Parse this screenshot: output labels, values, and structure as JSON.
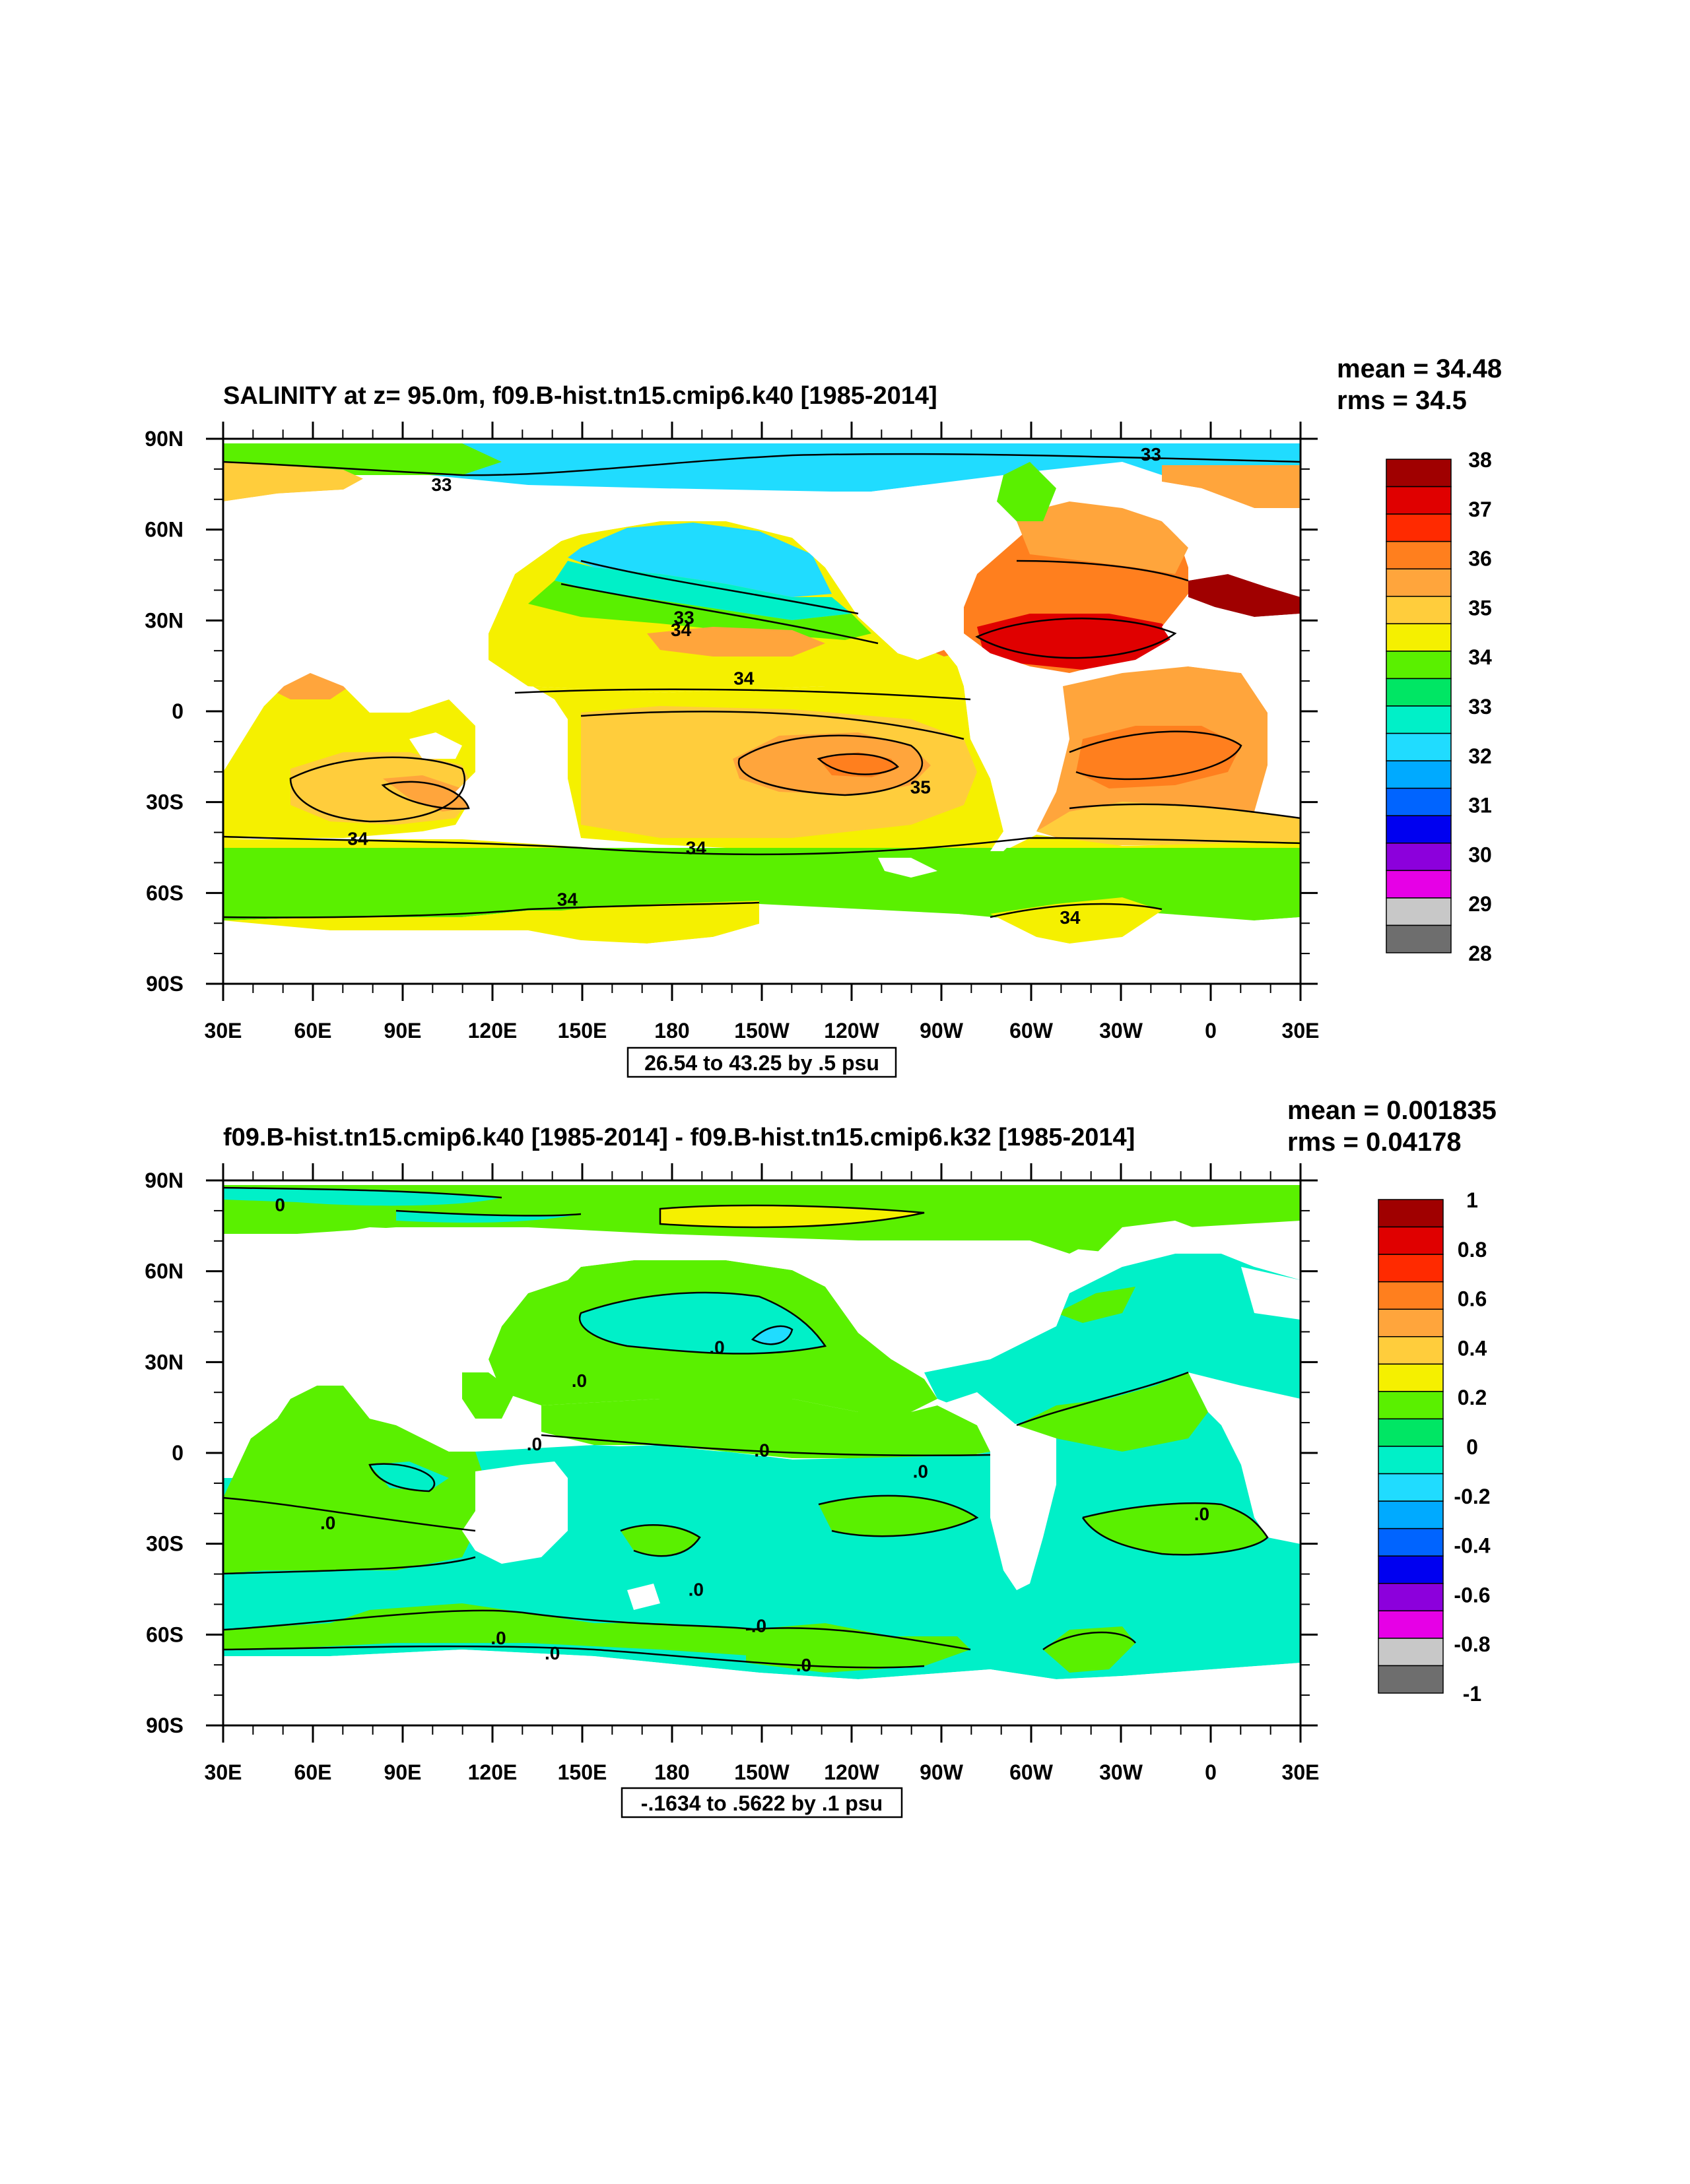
{
  "chart_data": [
    {
      "type": "contour-map",
      "title": "SALINITY at z=  95.0m, f09.B-hist.tn15.cmip6.k40 [1985-2014]",
      "stats": {
        "mean": "mean = 34.48",
        "rms": "rms = 34.5"
      },
      "x_ticks": [
        "30E",
        "60E",
        "90E",
        "120E",
        "150E",
        "180",
        "150W",
        "120W",
        "90W",
        "60W",
        "30W",
        "0",
        "30E"
      ],
      "y_ticks": [
        "90N",
        "60N",
        "30N",
        "0",
        "30S",
        "60S",
        "90S"
      ],
      "xlim": [
        30,
        390
      ],
      "ylim": [
        -90,
        90
      ],
      "contour_info": "26.54 to 43.25 by .5 psu",
      "colorbar": {
        "labels": [
          "38",
          "37",
          "36",
          "35",
          "34",
          "33",
          "32",
          "31",
          "30",
          "29",
          "28"
        ],
        "colors": [
          "#a00000",
          "#e00000",
          "#ff2a00",
          "#ff7f1e",
          "#ffa53c",
          "#ffcd3c",
          "#f5f000",
          "#5af000",
          "#00e664",
          "#00f0c8",
          "#20dcff",
          "#00aaff",
          "#0064ff",
          "#0000f0",
          "#8c00dc",
          "#e600e6",
          "#c8c8c8",
          "#6e6e6e"
        ]
      },
      "contour_labels": [
        {
          "text": "33",
          "lon": 103,
          "lat": 75
        },
        {
          "text": "33",
          "lon": 340,
          "lat": 85
        },
        {
          "text": "33",
          "lon": 184,
          "lat": 31
        },
        {
          "text": "34",
          "lon": 183,
          "lat": 27
        },
        {
          "text": "34",
          "lon": 204,
          "lat": 11
        },
        {
          "text": "35",
          "lon": 263,
          "lat": -25
        },
        {
          "text": "34",
          "lon": 75,
          "lat": -42
        },
        {
          "text": "34",
          "lon": 188,
          "lat": -45
        },
        {
          "text": "34",
          "lon": 145,
          "lat": -62
        },
        {
          "text": "34",
          "lon": 313,
          "lat": -68
        }
      ]
    },
    {
      "type": "contour-map",
      "title": "f09.B-hist.tn15.cmip6.k40 [1985-2014] - f09.B-hist.tn15.cmip6.k32 [1985-2014]",
      "stats": {
        "mean": "mean = 0.001835",
        "rms": "rms = 0.04178"
      },
      "x_ticks": [
        "30E",
        "60E",
        "90E",
        "120E",
        "150E",
        "180",
        "150W",
        "120W",
        "90W",
        "60W",
        "30W",
        "0",
        "30E"
      ],
      "y_ticks": [
        "90N",
        "60N",
        "30N",
        "0",
        "30S",
        "60S",
        "90S"
      ],
      "xlim": [
        30,
        390
      ],
      "ylim": [
        -90,
        90
      ],
      "contour_info": "-.1634 to .5622 by .1 psu",
      "colorbar": {
        "labels": [
          "1",
          "0.8",
          "0.6",
          "0.4",
          "0.2",
          "0",
          "-0.2",
          "-0.4",
          "-0.6",
          "-0.8",
          "-1"
        ],
        "colors": [
          "#a00000",
          "#e00000",
          "#ff2a00",
          "#ff7f1e",
          "#ffa53c",
          "#ffcd3c",
          "#f5f000",
          "#5af000",
          "#00e664",
          "#00f0c8",
          "#20dcff",
          "#00aaff",
          "#0064ff",
          "#0000f0",
          "#8c00dc",
          "#e600e6",
          "#c8c8c8",
          "#6e6e6e"
        ]
      },
      "contour_labels": [
        {
          "text": "0",
          "lon": 49,
          "lat": 82
        },
        {
          "text": ".0",
          "lon": 149,
          "lat": 24
        },
        {
          "text": ".0",
          "lon": 195,
          "lat": 35
        },
        {
          "text": ".0",
          "lon": 134,
          "lat": 3
        },
        {
          "text": ".0",
          "lon": 210,
          "lat": 1
        },
        {
          "text": ".0",
          "lon": 263,
          "lat": -6
        },
        {
          "text": ".0",
          "lon": 65,
          "lat": -23
        },
        {
          "text": ".0",
          "lon": 357,
          "lat": -20
        },
        {
          "text": ".0",
          "lon": 188,
          "lat": -45
        },
        {
          "text": ".0",
          "lon": 122,
          "lat": -61
        },
        {
          "text": ".0",
          "lon": 209,
          "lat": -57
        },
        {
          "text": ".0",
          "lon": 140,
          "lat": -66
        },
        {
          "text": ".0",
          "lon": 224,
          "lat": -70
        }
      ]
    }
  ]
}
